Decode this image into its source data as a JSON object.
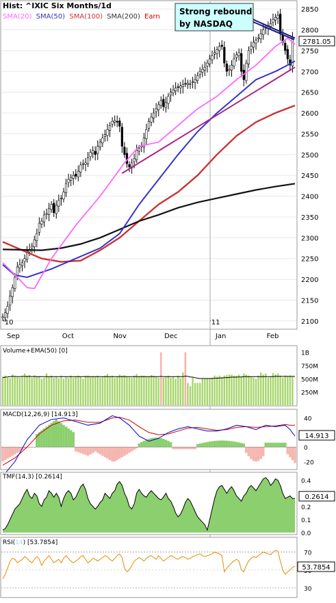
{
  "chart_data": [
    {
      "type": "candlestick",
      "title": "Hist: ^IXIC Six Months/1d",
      "legend": [
        "SMA(20)",
        "SMA(50)",
        "SMA(100)",
        "SMA(200)",
        "Earn"
      ],
      "legend_colors": [
        "#ff66ff",
        "#3333cc",
        "#cc3333",
        "#333333",
        "#cc0000"
      ],
      "last_value": "2781.05",
      "annotation": "Strong rebound by NASDAQ",
      "x_labels": [
        "Sep",
        "Oct",
        "Nov",
        "Dec",
        "Jan",
        "Feb"
      ],
      "x_label_extra": [
        "'10",
        "'11"
      ],
      "y_ticks": [
        2100,
        2150,
        2200,
        2250,
        2300,
        2350,
        2400,
        2450,
        2500,
        2550,
        2600,
        2650,
        2700,
        2750,
        2800,
        2850
      ],
      "ylim": [
        2085,
        2865
      ],
      "close": [
        2110,
        2120,
        2135,
        2160,
        2180,
        2205,
        2230,
        2235,
        2240,
        2250,
        2268,
        2272,
        2280,
        2295,
        2310,
        2335,
        2340,
        2355,
        2358,
        2370,
        2380,
        2360,
        2378,
        2390,
        2395,
        2410,
        2430,
        2440,
        2445,
        2450,
        2448,
        2460,
        2475,
        2478,
        2480,
        2492,
        2505,
        2510,
        2500,
        2520,
        2530,
        2540,
        2548,
        2560,
        2570,
        2580,
        2582,
        2578,
        2568,
        2520,
        2500,
        2478,
        2470,
        2480,
        2490,
        2510,
        2515,
        2520,
        2540,
        2560,
        2580,
        2590,
        2600,
        2610,
        2620,
        2630,
        2615,
        2625,
        2640,
        2650,
        2655,
        2660,
        2662,
        2665,
        2668,
        2670,
        2672,
        2670,
        2675,
        2680,
        2690,
        2700,
        2705,
        2710,
        2720,
        2730,
        2738,
        2745,
        2752,
        2760,
        2760,
        2720,
        2700,
        2705,
        2715,
        2730,
        2740,
        2745,
        2700,
        2680,
        2720,
        2750,
        2760,
        2770,
        2775,
        2780,
        2790,
        2800,
        2805,
        2810,
        2815,
        2825,
        2830,
        2835,
        2790,
        2770,
        2750,
        2730,
        2715,
        2781
      ],
      "sma20": [
        [
          0,
          2240
        ],
        [
          6,
          2205
        ],
        [
          10,
          2180
        ],
        [
          13,
          2178
        ],
        [
          20,
          2250
        ],
        [
          30,
          2330
        ],
        [
          40,
          2400
        ],
        [
          50,
          2480
        ],
        [
          56,
          2520
        ],
        [
          64,
          2530
        ],
        [
          72,
          2570
        ],
        [
          80,
          2610
        ],
        [
          88,
          2640
        ],
        [
          96,
          2680
        ],
        [
          104,
          2715
        ],
        [
          112,
          2760
        ],
        [
          117,
          2780
        ],
        [
          120,
          2765
        ]
      ],
      "sma50": [
        [
          0,
          2235
        ],
        [
          5,
          2210
        ],
        [
          10,
          2205
        ],
        [
          20,
          2225
        ],
        [
          30,
          2250
        ],
        [
          40,
          2275
        ],
        [
          48,
          2310
        ],
        [
          56,
          2380
        ],
        [
          64,
          2440
        ],
        [
          72,
          2500
        ],
        [
          80,
          2555
        ],
        [
          88,
          2600
        ],
        [
          96,
          2640
        ],
        [
          104,
          2680
        ],
        [
          112,
          2700
        ],
        [
          116,
          2712
        ],
        [
          120,
          2725
        ]
      ],
      "sma100": [
        [
          0,
          2290
        ],
        [
          8,
          2270
        ],
        [
          16,
          2250
        ],
        [
          24,
          2242
        ],
        [
          32,
          2245
        ],
        [
          40,
          2270
        ],
        [
          48,
          2300
        ],
        [
          56,
          2340
        ],
        [
          64,
          2380
        ],
        [
          72,
          2410
        ],
        [
          80,
          2450
        ],
        [
          88,
          2500
        ],
        [
          96,
          2545
        ],
        [
          104,
          2578
        ],
        [
          112,
          2600
        ],
        [
          120,
          2618
        ]
      ],
      "sma200": [
        [
          0,
          2272
        ],
        [
          16,
          2270
        ],
        [
          24,
          2275
        ],
        [
          32,
          2285
        ],
        [
          40,
          2300
        ],
        [
          48,
          2320
        ],
        [
          56,
          2340
        ],
        [
          64,
          2355
        ],
        [
          72,
          2372
        ],
        [
          80,
          2385
        ],
        [
          88,
          2395
        ],
        [
          96,
          2405
        ],
        [
          104,
          2415
        ],
        [
          112,
          2423
        ],
        [
          120,
          2430
        ]
      ],
      "trendline_1": [
        [
          49,
          2455
        ],
        [
          120,
          2710
        ]
      ],
      "trendline_2": [
        [
          97,
          2840
        ],
        [
          120,
          2780
        ]
      ]
    },
    {
      "type": "bar",
      "title": "Volume+EMA(50) [0]",
      "y_ticks": [
        "1B",
        "750M",
        "500M",
        "250M"
      ],
      "y_tick_values": [
        1000,
        750,
        500,
        250
      ],
      "ylim": [
        0,
        1100
      ],
      "bar_color": "#a6d56a",
      "spike_color": "#ffaaaa",
      "values": [
        540,
        560,
        520,
        510,
        580,
        550,
        530,
        520,
        540,
        600,
        560,
        570,
        520,
        560,
        540,
        550,
        500,
        520,
        600,
        540,
        560,
        520,
        540,
        510,
        560,
        500,
        540,
        520,
        560,
        520,
        540,
        560,
        540,
        500,
        560,
        560,
        540,
        550,
        540,
        560,
        520,
        540,
        560,
        590,
        540,
        560,
        520,
        540,
        580,
        560,
        570,
        540,
        530,
        520,
        560,
        590,
        540,
        560,
        560,
        540,
        540,
        570,
        560,
        540,
        520,
        1000,
        520,
        540,
        560,
        520,
        540,
        500,
        560,
        510,
        620,
        1000,
        420,
        360,
        520,
        420,
        420,
        420,
        500,
        500,
        500,
        500,
        520,
        560,
        540,
        560,
        530,
        560,
        570,
        580,
        580,
        560,
        560,
        580,
        540,
        600,
        580,
        560,
        540,
        520,
        500,
        560,
        620,
        580,
        600,
        520,
        540,
        610,
        580,
        600,
        560,
        520,
        560,
        540,
        560,
        540
      ],
      "ema50": [
        520,
        530,
        535,
        540,
        545,
        545,
        540,
        540,
        545,
        545,
        540,
        545,
        540,
        545,
        540,
        540,
        540,
        540,
        540,
        540,
        540,
        540,
        540,
        540,
        540,
        540,
        540,
        540,
        540,
        540,
        540,
        540,
        540,
        540,
        540,
        540,
        540,
        540,
        540,
        540,
        540,
        540,
        540,
        540,
        540,
        540,
        540,
        540,
        540,
        540,
        540,
        540,
        540,
        540,
        540,
        540,
        540,
        540,
        540,
        540,
        540,
        540,
        540,
        540,
        540,
        545,
        540,
        540,
        540,
        540,
        540,
        540,
        540,
        540,
        540,
        550,
        545,
        535,
        530,
        520,
        510,
        505,
        505,
        505,
        505,
        505,
        505,
        510,
        510,
        515,
        515,
        520,
        520,
        525,
        530,
        530,
        530,
        535,
        535,
        540,
        540,
        540,
        540,
        540,
        540,
        540,
        540,
        540,
        540,
        540,
        540,
        540,
        545,
        545,
        545,
        545,
        545,
        545,
        545,
        545,
        545
      ]
    },
    {
      "type": "line",
      "title": "MACD(12,26,9) [14.913]",
      "last_value": "14.913",
      "y_ticks": [
        40,
        20,
        0,
        -20
      ],
      "ylim": [
        -30,
        50
      ],
      "macd": [
        [
          0,
          -40
        ],
        [
          5,
          -20
        ],
        [
          10,
          10
        ],
        [
          15,
          30
        ],
        [
          20,
          38
        ],
        [
          25,
          40
        ],
        [
          30,
          35
        ],
        [
          35,
          30
        ],
        [
          40,
          33
        ],
        [
          45,
          43
        ],
        [
          48,
          40
        ],
        [
          52,
          30
        ],
        [
          56,
          15
        ],
        [
          60,
          8
        ],
        [
          64,
          12
        ],
        [
          68,
          20
        ],
        [
          72,
          25
        ],
        [
          76,
          28
        ],
        [
          80,
          25
        ],
        [
          84,
          22
        ],
        [
          88,
          22
        ],
        [
          92,
          25
        ],
        [
          96,
          30
        ],
        [
          100,
          28
        ],
        [
          104,
          24
        ],
        [
          108,
          30
        ],
        [
          112,
          28
        ],
        [
          116,
          30
        ],
        [
          118,
          24
        ],
        [
          120,
          15
        ]
      ],
      "signal": [
        [
          0,
          -25
        ],
        [
          5,
          -15
        ],
        [
          10,
          0
        ],
        [
          15,
          18
        ],
        [
          20,
          30
        ],
        [
          25,
          36
        ],
        [
          30,
          37
        ],
        [
          35,
          34
        ],
        [
          40,
          34
        ],
        [
          45,
          40
        ],
        [
          48,
          41
        ],
        [
          52,
          37
        ],
        [
          56,
          28
        ],
        [
          60,
          20
        ],
        [
          64,
          17
        ],
        [
          68,
          18
        ],
        [
          72,
          22
        ],
        [
          76,
          26
        ],
        [
          80,
          27
        ],
        [
          84,
          25
        ],
        [
          88,
          23
        ],
        [
          92,
          24
        ],
        [
          96,
          27
        ],
        [
          100,
          28
        ],
        [
          104,
          27
        ],
        [
          108,
          28
        ],
        [
          112,
          29
        ],
        [
          116,
          31
        ],
        [
          118,
          30
        ],
        [
          120,
          30
        ]
      ],
      "histogram_pos_color": "#8ccf6e",
      "histogram_neg_color": "#f6b6b0"
    },
    {
      "type": "area",
      "title": "TMF(14,3) [0.2614]",
      "last_value": "0.2614",
      "y_ticks": [
        "0.4",
        "0.3",
        "0.2",
        "0.1",
        "0.0"
      ],
      "y_tick_values": [
        0.4,
        0.3,
        0.2,
        0.1,
        0.0
      ],
      "ylim": [
        -0.01,
        0.45
      ],
      "fill_color": "#8ccf6e",
      "values": [
        0.02,
        0.03,
        0.06,
        0.1,
        0.14,
        0.18,
        0.2,
        0.22,
        0.26,
        0.3,
        0.33,
        0.28,
        0.26,
        0.3,
        0.28,
        0.22,
        0.2,
        0.25,
        0.27,
        0.32,
        0.3,
        0.27,
        0.3,
        0.27,
        0.2,
        0.26,
        0.3,
        0.32,
        0.3,
        0.25,
        0.27,
        0.31,
        0.35,
        0.37,
        0.33,
        0.26,
        0.22,
        0.2,
        0.18,
        0.2,
        0.23,
        0.25,
        0.3,
        0.28,
        0.26,
        0.3,
        0.32,
        0.37,
        0.39,
        0.36,
        0.3,
        0.26,
        0.2,
        0.18,
        0.22,
        0.3,
        0.33,
        0.3,
        0.28,
        0.27,
        0.3,
        0.32,
        0.3,
        0.28,
        0.26,
        0.25,
        0.27,
        0.3,
        0.26,
        0.24,
        0.2,
        0.15,
        0.12,
        0.14,
        0.18,
        0.23,
        0.26,
        0.24,
        0.2,
        0.16,
        0.12,
        0.1,
        0.08,
        0.06,
        0.02,
        0.1,
        0.18,
        0.26,
        0.32,
        0.35,
        0.36,
        0.33,
        0.3,
        0.33,
        0.35,
        0.32,
        0.28,
        0.26,
        0.24,
        0.28,
        0.3,
        0.34,
        0.36,
        0.34,
        0.32,
        0.35,
        0.38,
        0.41,
        0.42,
        0.4,
        0.36,
        0.38,
        0.41,
        0.4,
        0.36,
        0.3,
        0.26,
        0.27,
        0.28,
        0.26,
        0.26
      ]
    },
    {
      "type": "line",
      "title": "RSI(14) [53.7854]",
      "title_parts": [
        "RSI(",
        "14",
        ") [53.7854]"
      ],
      "last_value": "53.7854",
      "y_ticks": [
        70,
        50,
        30
      ],
      "ylim": [
        20,
        85
      ],
      "line_color": "#e68a00",
      "values": [
        40,
        45,
        52,
        60,
        63,
        62,
        58,
        60,
        62,
        65,
        63,
        60,
        58,
        62,
        65,
        62,
        55,
        60,
        63,
        66,
        62,
        58,
        60,
        62,
        58,
        63,
        66,
        63,
        60,
        58,
        60,
        62,
        65,
        66,
        62,
        58,
        60,
        63,
        62,
        60,
        62,
        64,
        66,
        65,
        62,
        60,
        63,
        66,
        68,
        64,
        52,
        48,
        50,
        55,
        60,
        62,
        64,
        62,
        60,
        63,
        65,
        66,
        64,
        62,
        66,
        63,
        60,
        62,
        64,
        66,
        65,
        63,
        62,
        64,
        65,
        64,
        62,
        63,
        65,
        66,
        67,
        68,
        66,
        65,
        66,
        67,
        68,
        70,
        69,
        68,
        66,
        48,
        52,
        55,
        58,
        60,
        62,
        60,
        50,
        48,
        55,
        60,
        63,
        65,
        64,
        66,
        68,
        70,
        69,
        68,
        67,
        70,
        72,
        71,
        60,
        50,
        45,
        48,
        50,
        53,
        54
      ]
    }
  ]
}
